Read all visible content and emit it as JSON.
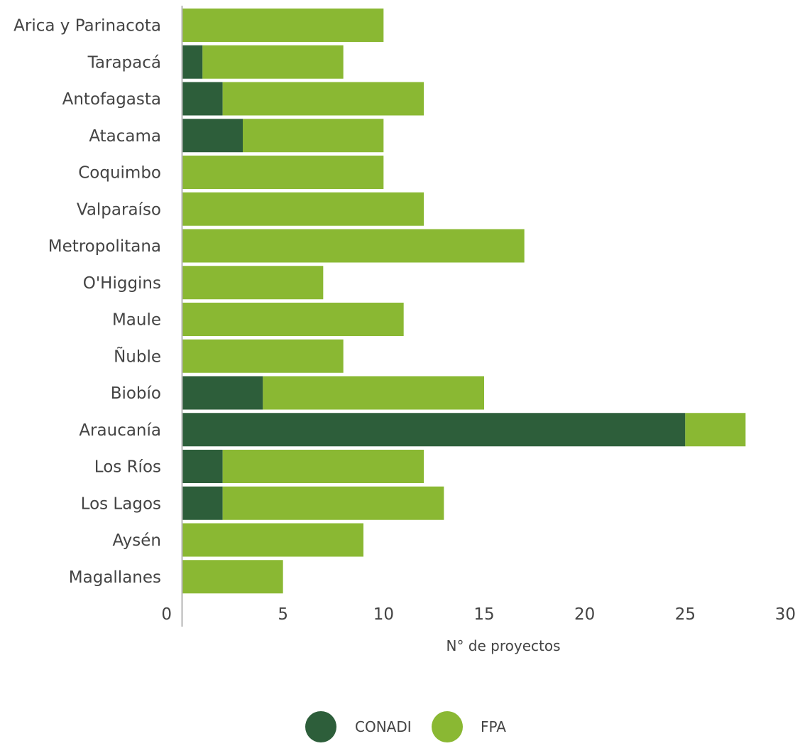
{
  "chart_data": {
    "type": "bar",
    "orientation": "horizontal",
    "stacked": true,
    "categories": [
      "Arica y Parinacota",
      "Tarapacá",
      "Antofagasta",
      "Atacama",
      "Coquimbo",
      "Valparaíso",
      "Metropolitana",
      "O'Higgins",
      "Maule",
      "Ñuble",
      "Biobío",
      "Araucanía",
      "Los Ríos",
      "Los Lagos",
      "Aysén",
      "Magallanes"
    ],
    "series": [
      {
        "name": "CONADI",
        "color": "#2d5e3a",
        "values": [
          0,
          1,
          2,
          3,
          0,
          0,
          0,
          0,
          0,
          0,
          4,
          25,
          2,
          2,
          0,
          0
        ]
      },
      {
        "name": "FPA",
        "color": "#8ab833",
        "values": [
          10,
          7,
          10,
          7,
          10,
          12,
          17,
          7,
          11,
          8,
          11,
          3,
          10,
          11,
          9,
          5
        ]
      }
    ],
    "xlabel": "N° de proyectos",
    "ylabel": "",
    "xlim": [
      0,
      30
    ],
    "xticks": [
      0,
      5,
      10,
      15,
      20,
      25,
      30
    ],
    "grid": false,
    "legend_position": "bottom-center"
  }
}
